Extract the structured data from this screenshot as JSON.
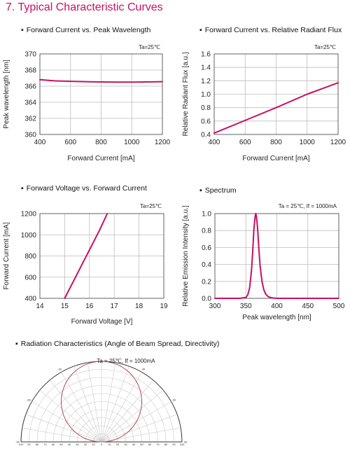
{
  "page": {
    "section_title": "7. Typical Characteristic Curves"
  },
  "chart_data": [
    {
      "type": "line",
      "heading": "Forward Current vs. Peak Wavelength",
      "condition": "Ta=25℃",
      "xlabel": "Forward Current [mA]",
      "ylabel": "Peak wavelength [nm]",
      "xlim": [
        400,
        1200
      ],
      "ylim": [
        360,
        370
      ],
      "xticks": [
        "400",
        "600",
        "800",
        "1000",
        "1200"
      ],
      "yticks": [
        "360",
        "362",
        "364",
        "366",
        "368",
        "370"
      ],
      "grid": true,
      "color": "#c8105f",
      "series": [
        {
          "x": [
            400,
            500,
            600,
            700,
            800,
            900,
            1000,
            1100,
            1200
          ],
          "y": [
            366.8,
            366.65,
            366.6,
            366.55,
            366.52,
            366.5,
            366.5,
            366.52,
            366.55
          ]
        }
      ]
    },
    {
      "type": "line",
      "heading": "Forward Current vs. Relative Radiant Flux",
      "condition": "Ta=25℃",
      "xlabel": "Forward Current [mA]",
      "ylabel": "Relative Radiant Flux [a.u.]",
      "xlim": [
        400,
        1200
      ],
      "ylim": [
        0.4,
        1.6
      ],
      "xticks": [
        "400",
        "600",
        "800",
        "1000",
        "1200"
      ],
      "yticks": [
        "0.4",
        "0.6",
        "0.8",
        "1.0",
        "1.2",
        "1.4",
        "1.6"
      ],
      "grid": true,
      "color": "#c8105f",
      "series": [
        {
          "x": [
            400,
            600,
            800,
            1000,
            1200
          ],
          "y": [
            0.42,
            0.61,
            0.8,
            1.0,
            1.17
          ]
        }
      ]
    },
    {
      "type": "line",
      "heading": "Forward Voltage vs. Forward Current",
      "condition": "Ta=25℃",
      "xlabel": "Forward Voltage [V]",
      "ylabel": "Forward Current [mA]",
      "xlim": [
        14,
        19
      ],
      "ylim": [
        400,
        1200
      ],
      "xticks": [
        "14",
        "15",
        "16",
        "17",
        "18",
        "19"
      ],
      "yticks": [
        "400",
        "600",
        "800",
        "1000",
        "1200"
      ],
      "grid": true,
      "color": "#c8105f",
      "series": [
        {
          "x": [
            15.0,
            15.35,
            15.7,
            16.05,
            16.4,
            16.72
          ],
          "y": [
            400,
            560,
            720,
            880,
            1040,
            1200
          ]
        }
      ]
    },
    {
      "type": "line",
      "heading": "Spectrum",
      "condition": "Ta = 25℃,  If = 1000mA",
      "xlabel": "Peak wavelength [nm]",
      "ylabel": "Relative Emission Intensity [a.u.]",
      "xlim": [
        300,
        500
      ],
      "ylim": [
        0.0,
        1.0
      ],
      "xticks": [
        "300",
        "350",
        "400",
        "450",
        "500"
      ],
      "yticks": [
        "0.0",
        "0.2",
        "0.4",
        "0.6",
        "0.8",
        "1.0"
      ],
      "grid": true,
      "color": "#c8105f",
      "series": [
        {
          "x": [
            300,
            340,
            350,
            353,
            356,
            359,
            361,
            363,
            365,
            366,
            367,
            369,
            371,
            373,
            376,
            379,
            382,
            386,
            392,
            400,
            500
          ],
          "y": [
            0.0,
            0.0,
            0.01,
            0.04,
            0.12,
            0.32,
            0.55,
            0.82,
            0.97,
            1.0,
            0.97,
            0.82,
            0.58,
            0.38,
            0.2,
            0.1,
            0.05,
            0.02,
            0.005,
            0.0,
            0.0
          ]
        }
      ]
    },
    {
      "type": "polar",
      "heading": "Radiation Characteristics (Angle of Beam Spread, Directivity)",
      "condition": "Ta = 25℃,  If = 1000mA",
      "angle_range": [
        -90,
        90
      ],
      "radial_max": 100,
      "radial_ticks_left": [
        "100",
        "90",
        "80",
        "70",
        "60",
        "50",
        "40",
        "30",
        "20",
        "10",
        "0"
      ],
      "radial_ticks_right": [
        "10",
        "20",
        "30",
        "40",
        "50",
        "60",
        "70",
        "80",
        "90",
        "100"
      ],
      "angle_ticks": [
        "-90",
        "-60",
        "-30",
        "0",
        "30",
        "60",
        "90"
      ],
      "grid": true,
      "color": "#b5485f",
      "series": [
        {
          "pattern": "cos",
          "peak": 100
        }
      ]
    }
  ]
}
